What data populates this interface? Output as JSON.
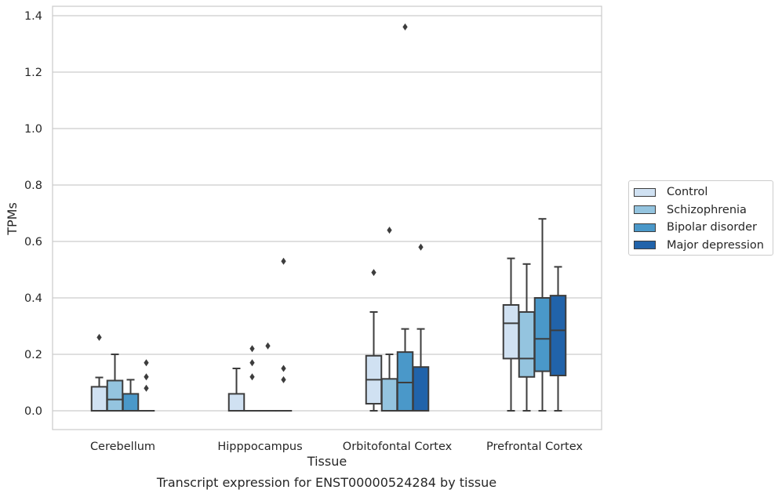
{
  "caption": "Transcript expression for ENST00000524284 by tissue",
  "chart_data": {
    "type": "box",
    "xlabel": "Tissue",
    "ylabel": "TPMs",
    "ylim": [
      -0.065,
      1.43
    ],
    "yticks": [
      0.0,
      0.2,
      0.4,
      0.6,
      0.8,
      1.0,
      1.2,
      1.4
    ],
    "ytick_labels": [
      "0.0",
      "0.2",
      "0.4",
      "0.6",
      "0.8",
      "1.0",
      "1.2",
      "1.4"
    ],
    "grid": "horizontal",
    "legend_position": "right",
    "categories": [
      "Cerebellum",
      "Hipppocampus",
      "Orbitofontal Cortex",
      "Prefrontal Cortex"
    ],
    "series": [
      {
        "name": "Control",
        "color": "#d0e1f2",
        "boxes": [
          {
            "q1": 0.0,
            "median": 0.0,
            "q3": 0.085,
            "whisker_low": 0.0,
            "whisker_high": 0.118,
            "outliers": [
              0.26
            ]
          },
          {
            "q1": 0.0,
            "median": 0.0,
            "q3": 0.06,
            "whisker_low": 0.0,
            "whisker_high": 0.15,
            "outliers": []
          },
          {
            "q1": 0.025,
            "median": 0.11,
            "q3": 0.195,
            "whisker_low": 0.0,
            "whisker_high": 0.35,
            "outliers": [
              0.49
            ]
          },
          {
            "q1": 0.185,
            "median": 0.31,
            "q3": 0.375,
            "whisker_low": 0.0,
            "whisker_high": 0.54,
            "outliers": []
          }
        ]
      },
      {
        "name": "Schizophrenia",
        "color": "#94c4df",
        "boxes": [
          {
            "q1": 0.0,
            "median": 0.04,
            "q3": 0.107,
            "whisker_low": 0.0,
            "whisker_high": 0.2,
            "outliers": []
          },
          {
            "q1": 0.0,
            "median": 0.0,
            "q3": 0.0,
            "whisker_low": 0.0,
            "whisker_high": 0.0,
            "outliers": [
              0.12,
              0.17,
              0.22
            ]
          },
          {
            "q1": 0.0,
            "median": 0.0,
            "q3": 0.113,
            "whisker_low": 0.0,
            "whisker_high": 0.2,
            "outliers": [
              0.64
            ]
          },
          {
            "q1": 0.12,
            "median": 0.185,
            "q3": 0.35,
            "whisker_low": 0.0,
            "whisker_high": 0.52,
            "outliers": []
          }
        ]
      },
      {
        "name": "Bipolar disorder",
        "color": "#4a98c9",
        "boxes": [
          {
            "q1": 0.0,
            "median": 0.0,
            "q3": 0.06,
            "whisker_low": 0.0,
            "whisker_high": 0.11,
            "outliers": []
          },
          {
            "q1": 0.0,
            "median": 0.0,
            "q3": 0.0,
            "whisker_low": 0.0,
            "whisker_high": 0.0,
            "outliers": [
              0.23
            ]
          },
          {
            "q1": 0.0,
            "median": 0.1,
            "q3": 0.208,
            "whisker_low": 0.0,
            "whisker_high": 0.29,
            "outliers": [
              1.36
            ]
          },
          {
            "q1": 0.14,
            "median": 0.255,
            "q3": 0.4,
            "whisker_low": 0.0,
            "whisker_high": 0.68,
            "outliers": []
          }
        ]
      },
      {
        "name": "Major depression",
        "color": "#2163aa",
        "boxes": [
          {
            "q1": 0.0,
            "median": 0.0,
            "q3": 0.0,
            "whisker_low": 0.0,
            "whisker_high": 0.0,
            "outliers": [
              0.08,
              0.12,
              0.17
            ]
          },
          {
            "q1": 0.0,
            "median": 0.0,
            "q3": 0.0,
            "whisker_low": 0.0,
            "whisker_high": 0.0,
            "outliers": [
              0.11,
              0.15,
              0.53
            ]
          },
          {
            "q1": 0.0,
            "median": 0.0,
            "q3": 0.155,
            "whisker_low": 0.0,
            "whisker_high": 0.29,
            "outliers": [
              0.58
            ]
          },
          {
            "q1": 0.125,
            "median": 0.285,
            "q3": 0.408,
            "whisker_low": 0.0,
            "whisker_high": 0.51,
            "outliers": []
          }
        ]
      }
    ]
  }
}
